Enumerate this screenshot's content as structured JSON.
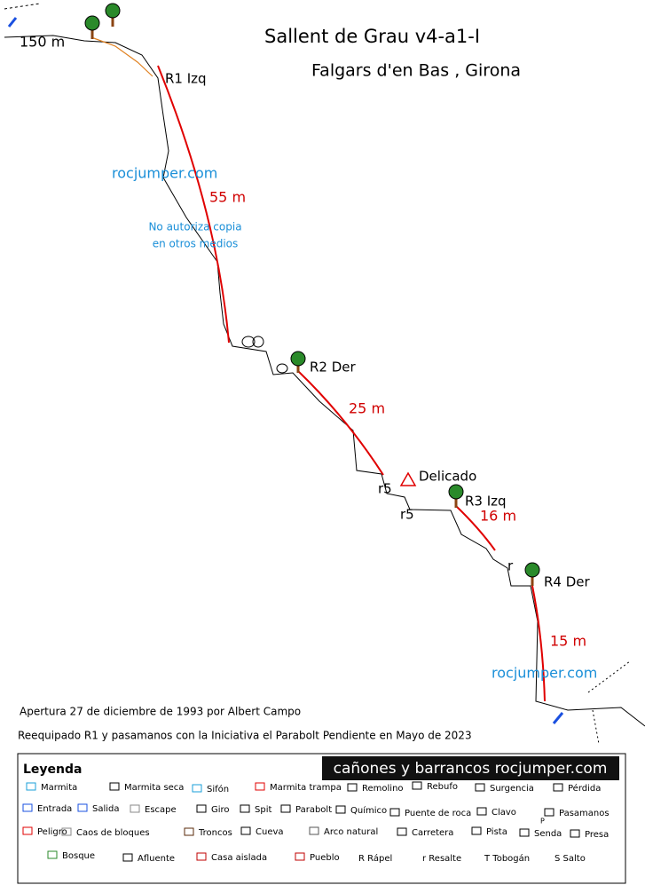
{
  "header": {
    "title": "Sallent de Grau v4-a1-I",
    "location": "Falgars d'en Bas , Girona"
  },
  "topo": {
    "start_length": "150 m",
    "watermark": "rocjumper.com",
    "copy_note": [
      "No autoriza copia",
      "en otros medios"
    ],
    "rappels": [
      {
        "name": "R1 Izq",
        "length": "55 m"
      },
      {
        "name": "R2 Der",
        "length": "25 m"
      },
      {
        "name": "R3 Izq",
        "length": "16 m"
      },
      {
        "name": "R4 Der",
        "length": "15 m"
      }
    ],
    "steps": [
      "r5",
      "r5",
      "r"
    ],
    "danger": "Delicado",
    "watermark_bottom": "rocjumper.com"
  },
  "notes": [
    "Apertura 27 de diciembre de 1993 por Albert Campo",
    "Reequipado R1 y pasamanos con la Iniciativa el Parabolt Pendiente en Mayo de 2023"
  ],
  "legend": {
    "title": "Leyenda",
    "banner": "cañones y barrancos rocjumper.com",
    "items": [
      "Marmita",
      "Marmita seca",
      "Sifón",
      "Marmita trampa",
      "Remolino",
      "Rebufo",
      "Surgencia",
      "Pérdida",
      "Entrada",
      "Salida",
      "Escape",
      "Giro",
      "Spit",
      "Parabolt",
      "Químico",
      "Puente de roca",
      "Clavo",
      "Pasamanos",
      "Peligro",
      "Caos de bloques",
      "Troncos",
      "Cueva",
      "Arco natural",
      "Carretera",
      "Pista",
      "Senda",
      "Presa",
      "Bosque",
      "Afluente",
      "Casa aislada",
      "Pueblo",
      "R Rápel",
      "r Resalte",
      "T Tobogán",
      "S Salto"
    ],
    "pasamanos_mark": "P"
  }
}
